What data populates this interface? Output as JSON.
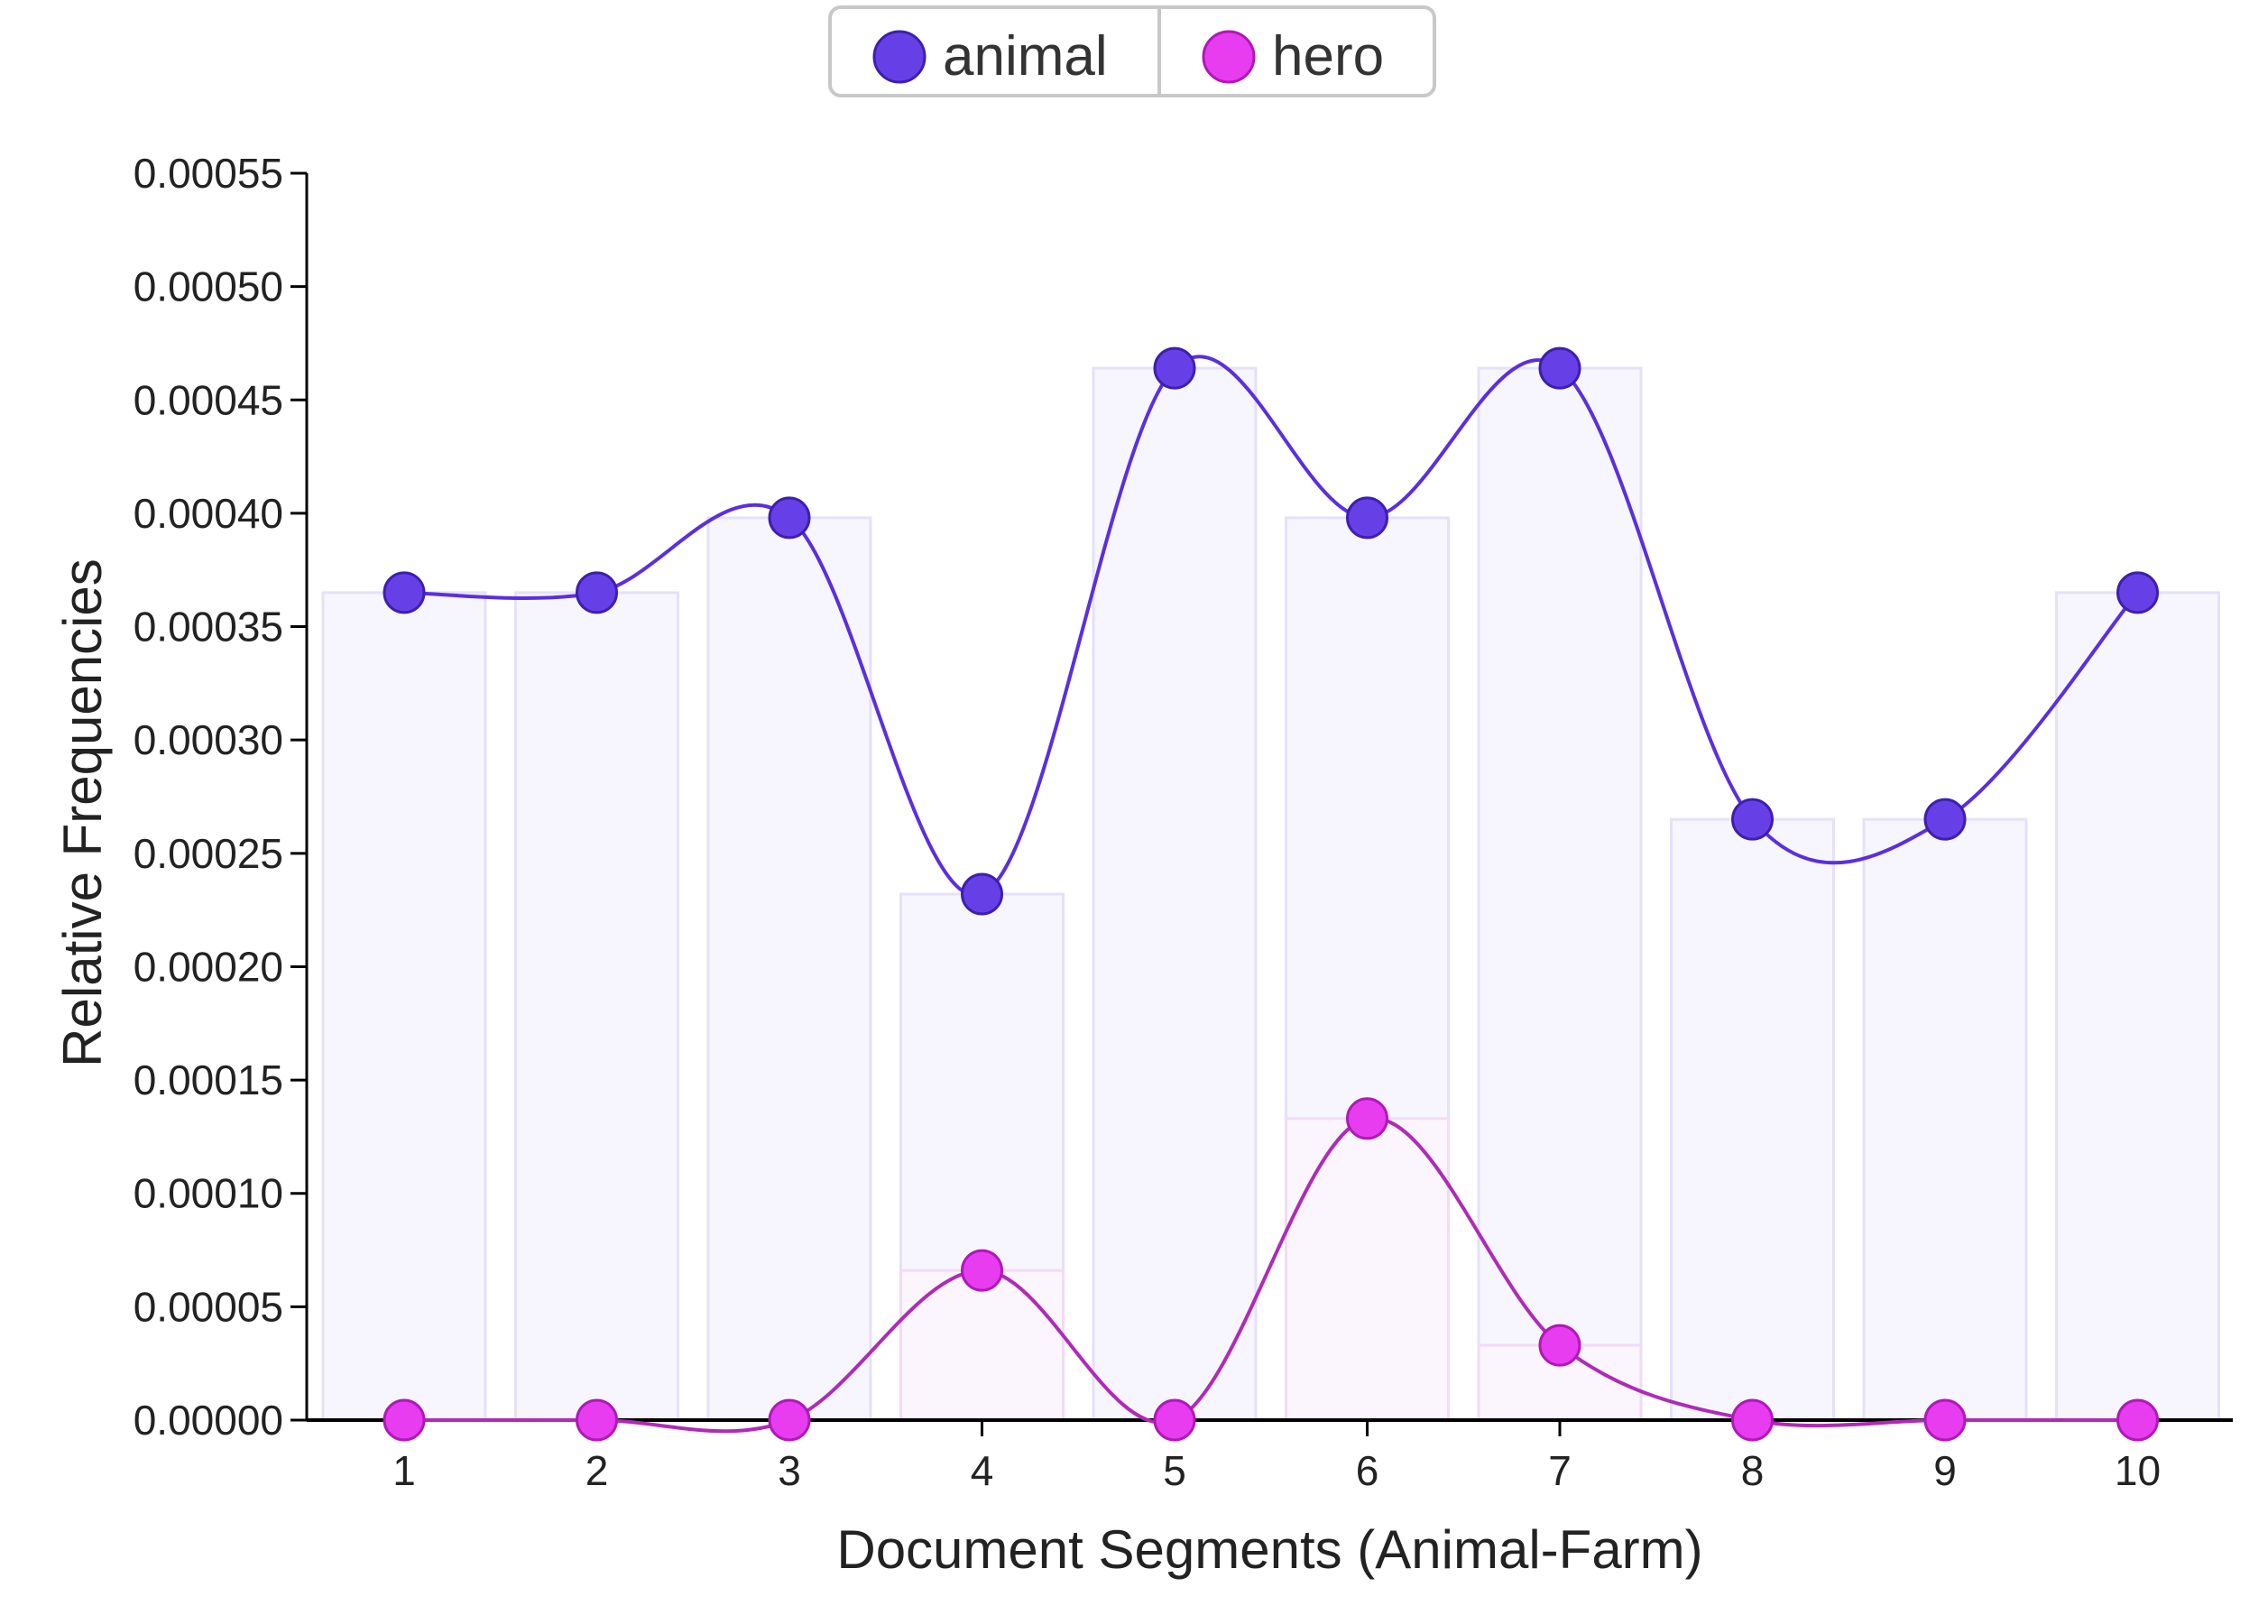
{
  "chart_data": {
    "type": "line",
    "title": "",
    "xlabel": "Document Segments (Animal-Farm)",
    "ylabel": "Relative Frequencies",
    "x": [
      1,
      2,
      3,
      4,
      5,
      6,
      7,
      8,
      9,
      10
    ],
    "ylim": [
      0,
      0.00055
    ],
    "ytick_labels": [
      "0.00000",
      "0.00005",
      "0.00010",
      "0.00015",
      "0.00020",
      "0.00025",
      "0.00030",
      "0.00035",
      "0.00040",
      "0.00045",
      "0.00050",
      "0.00055"
    ],
    "grid": false,
    "legend": "top-center",
    "series": [
      {
        "name": "animal",
        "color": "#6640e6",
        "values": [
          0.000365,
          0.000365,
          0.000398,
          0.000232,
          0.000464,
          0.000398,
          0.000464,
          0.000265,
          0.000265,
          0.000365
        ]
      },
      {
        "name": "hero",
        "color": "#e83cf0",
        "values": [
          0.0,
          0.0,
          0.0,
          6.6e-05,
          0.0,
          0.000133,
          3.3e-05,
          0.0,
          0.0,
          0.0
        ]
      }
    ]
  }
}
